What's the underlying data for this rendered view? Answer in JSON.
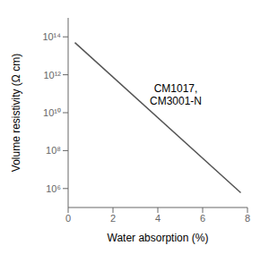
{
  "chart_data": {
    "type": "line",
    "x": [
      0.3,
      7.7
    ],
    "values": [
      50000000000000.0,
      600000.0
    ],
    "color": "#555555",
    "xlabel": "Water absorption (%)",
    "ylabel": "Volume resistivity (Ω cm)",
    "xlim": [
      0,
      8
    ],
    "ylim": [
      100000.0,
      1000000000000000.0
    ],
    "xticks": [
      0,
      2,
      4,
      6,
      8
    ],
    "yticks": [
      {
        "value": 1000000.0,
        "label": "10⁶"
      },
      {
        "value": 100000000.0,
        "label": "10⁸"
      },
      {
        "value": 10000000000.0,
        "label": "10¹⁰"
      },
      {
        "value": 1000000000000.0,
        "label": "10¹²"
      },
      {
        "value": 100000000000000.0,
        "label": "10¹⁴"
      }
    ],
    "log": "y",
    "grid": false,
    "annotations": [
      {
        "text": "CM1017,",
        "x": 4.8,
        "y": 200000000000.0
      },
      {
        "text": "CM3001-N",
        "x": 4.8,
        "y": 40000000000.0
      }
    ]
  }
}
